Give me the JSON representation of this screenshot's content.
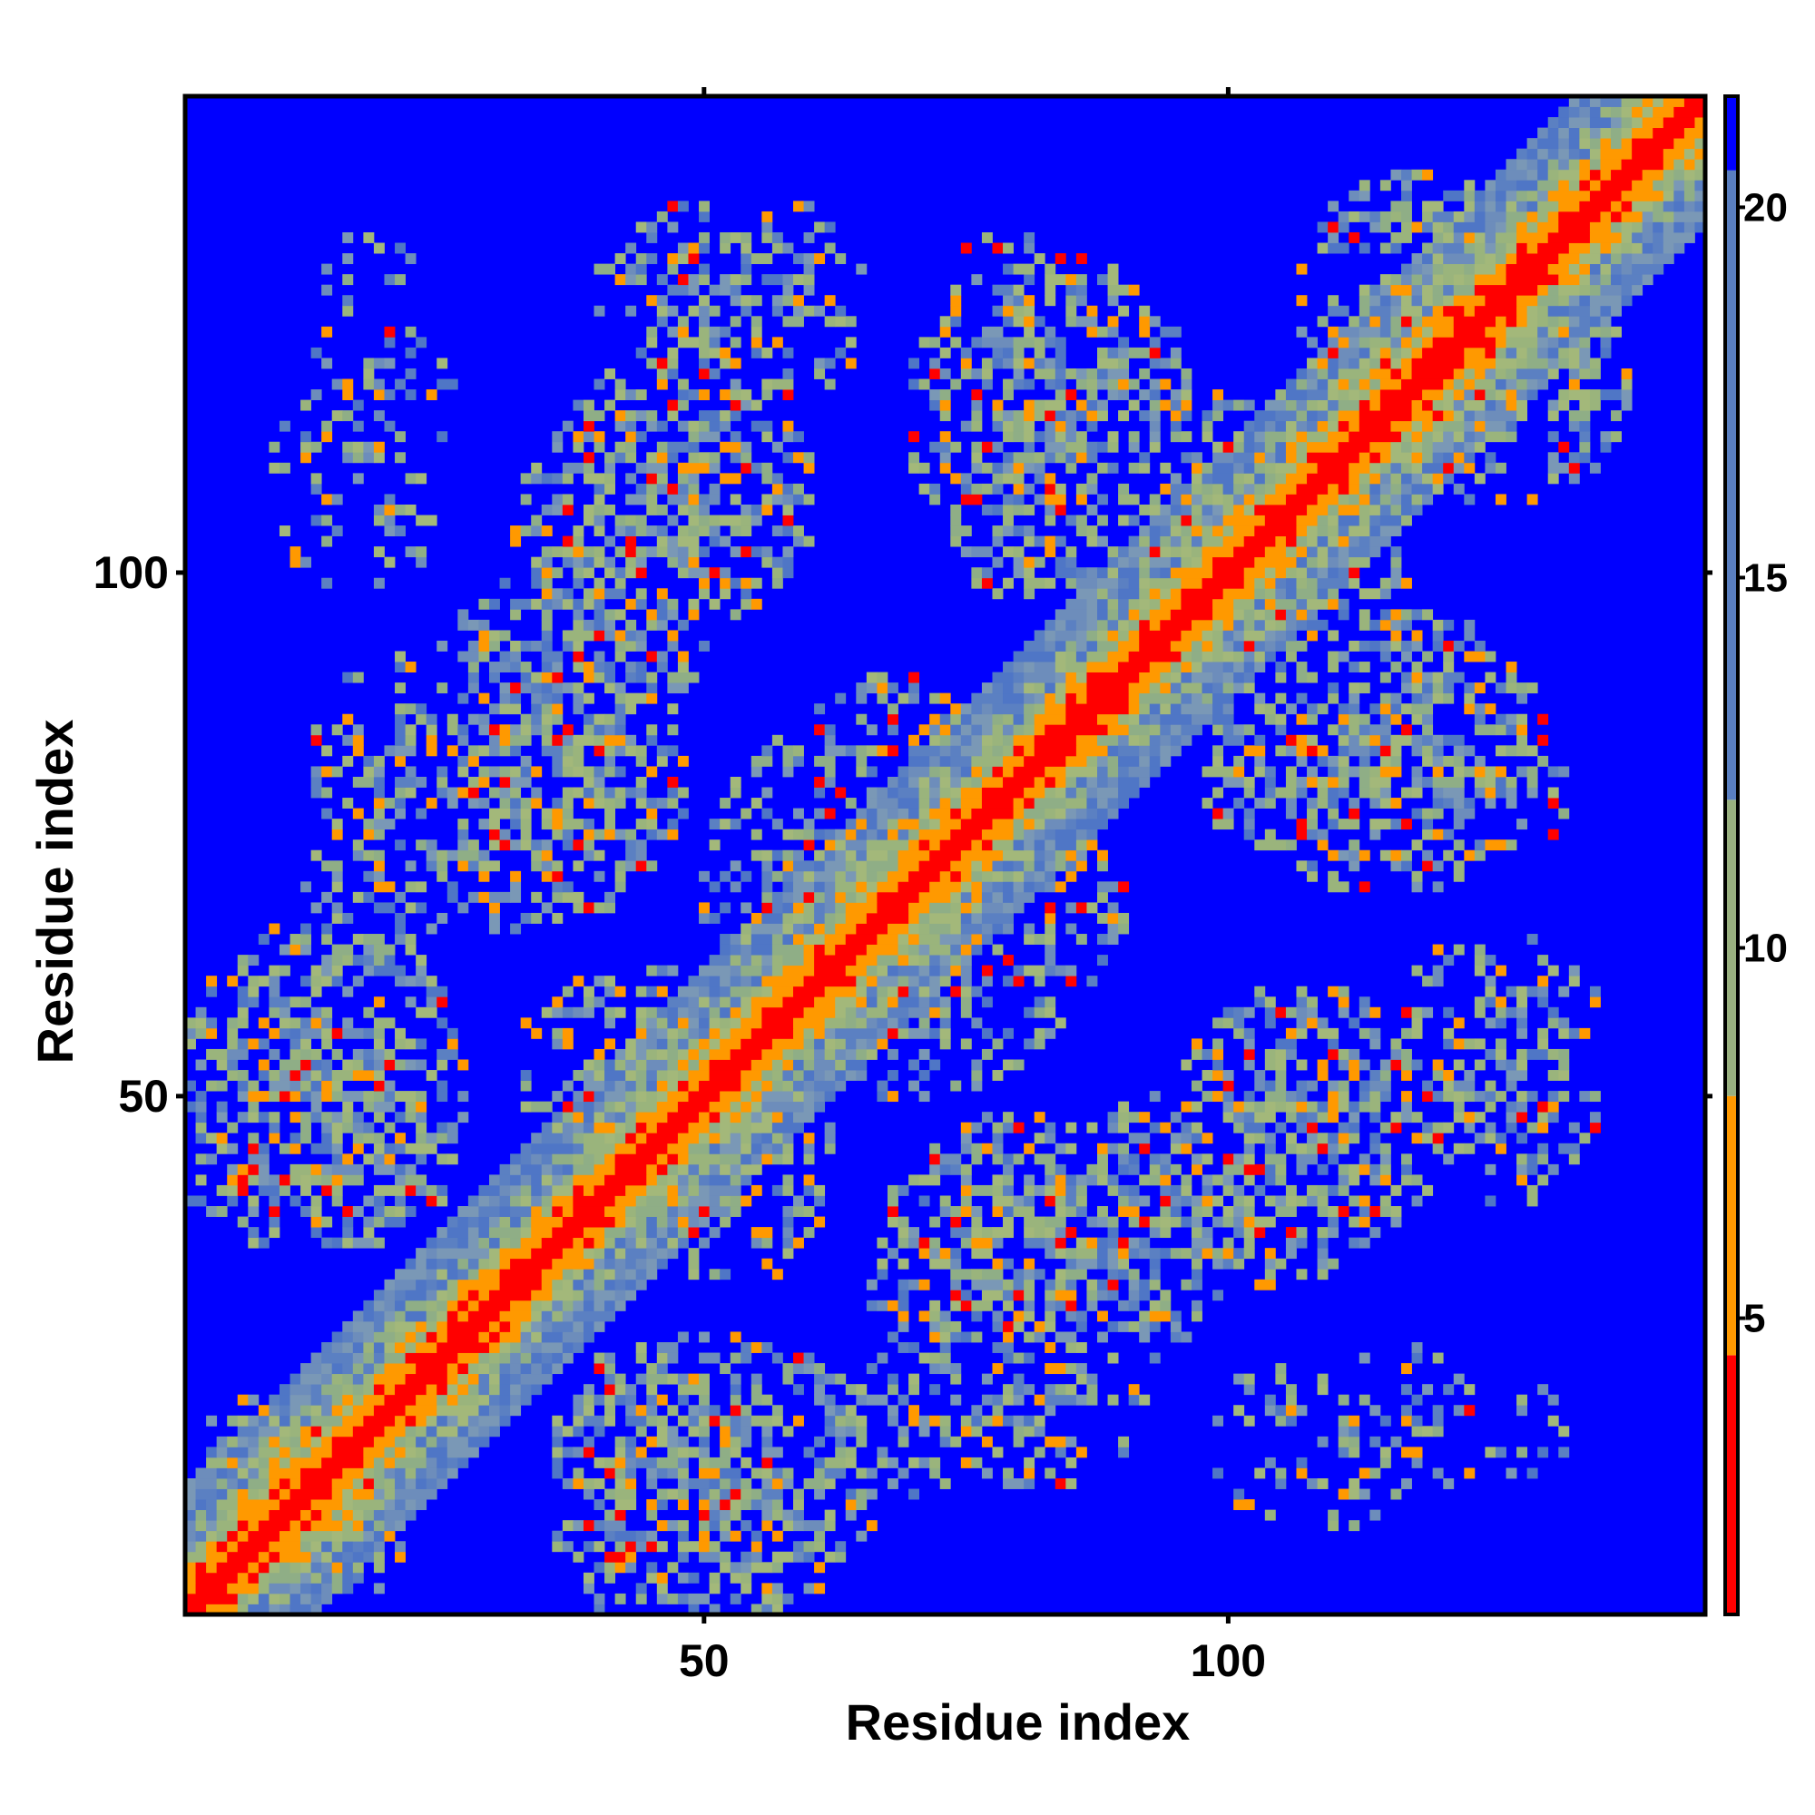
{
  "chart_data": {
    "type": "heatmap",
    "title": "",
    "xlabel": "Residue index",
    "ylabel": "Residue index",
    "n_residues": 145,
    "xlim": [
      0.5,
      145.5
    ],
    "ylim": [
      0.5,
      145.5
    ],
    "x_ticks": [
      50,
      100
    ],
    "y_ticks": [
      50,
      100
    ],
    "x_tick_labels": [
      "50",
      "100"
    ],
    "y_tick_labels": [
      "50",
      "100"
    ],
    "colorbar": {
      "range": [
        1,
        21.5
      ],
      "ticks": [
        5,
        10,
        15,
        20
      ],
      "tick_labels": [
        "5",
        "10",
        "15",
        "20"
      ],
      "bands": [
        {
          "from": 1,
          "to": 4.5,
          "color": "#ff0000"
        },
        {
          "from": 4.5,
          "to": 8.0,
          "color": "#ff9900"
        },
        {
          "from": 8.0,
          "to": 12.0,
          "color": "#99b080"
        },
        {
          "from": 12.0,
          "to": 21.5,
          "color": "#5a7fc0"
        }
      ],
      "far_color": "#0000ff"
    },
    "contact_regions": [
      {
        "x": [
          1,
          25
        ],
        "y": [
          44,
          60
        ],
        "intensity": 0.85
      },
      {
        "x": [
          1,
          25
        ],
        "y": [
          36,
          46
        ],
        "intensity": 0.7
      },
      {
        "x": [
          3,
          14
        ],
        "y": [
          9,
          22
        ],
        "intensity": 0.8
      },
      {
        "x": [
          12,
          26
        ],
        "y": [
          65,
          79
        ],
        "intensity": 0.6
      },
      {
        "x": [
          22,
          44
        ],
        "y": [
          66,
          95
        ],
        "intensity": 0.8
      },
      {
        "x": [
          32,
          50
        ],
        "y": [
          82,
          115
        ],
        "intensity": 0.75
      },
      {
        "x": [
          12,
          26
        ],
        "y": [
          112,
          125
        ],
        "intensity": 0.3
      },
      {
        "x": [
          40,
          62
        ],
        "y": [
          120,
          135
        ],
        "intensity": 0.65
      },
      {
        "x": [
          50,
          66
        ],
        "y": [
          57,
          82
        ],
        "intensity": 0.6
      },
      {
        "x": [
          36,
          66
        ],
        "y": [
          1,
          27
        ],
        "intensity": 0.8
      },
      {
        "x": [
          33,
          58
        ],
        "y": [
          44,
          62
        ],
        "intensity": 0.6
      },
      {
        "x": [
          67,
          90
        ],
        "y": [
          56,
          82
        ],
        "intensity": 0.6
      },
      {
        "x": [
          68,
          100
        ],
        "y": [
          24,
          48
        ],
        "intensity": 0.8
      },
      {
        "x": [
          68,
          92
        ],
        "y": [
          13,
          26
        ],
        "intensity": 0.55
      },
      {
        "x": [
          70,
          96
        ],
        "y": [
          101,
          130
        ],
        "intensity": 0.8
      },
      {
        "x": [
          86,
          117
        ],
        "y": [
          93,
          110
        ],
        "intensity": 0.7
      },
      {
        "x": [
          98,
          122
        ],
        "y": [
          72,
          91
        ],
        "intensity": 0.75
      },
      {
        "x": [
          96,
          120
        ],
        "y": [
          36,
          60
        ],
        "intensity": 0.75
      },
      {
        "x": [
          108,
          138
        ],
        "y": [
          107,
          130
        ],
        "intensity": 0.8
      },
      {
        "x": [
          117,
          135
        ],
        "y": [
          48,
          65
        ],
        "intensity": 0.55
      },
      {
        "x": [
          123,
          132
        ],
        "y": [
          74,
          85
        ],
        "intensity": 0.5
      },
      {
        "x": [
          99,
          120
        ],
        "y": [
          9,
          25
        ],
        "intensity": 0.35
      },
      {
        "x": [
          122,
          132
        ],
        "y": [
          14,
          22
        ],
        "intensity": 0.3
      }
    ]
  }
}
